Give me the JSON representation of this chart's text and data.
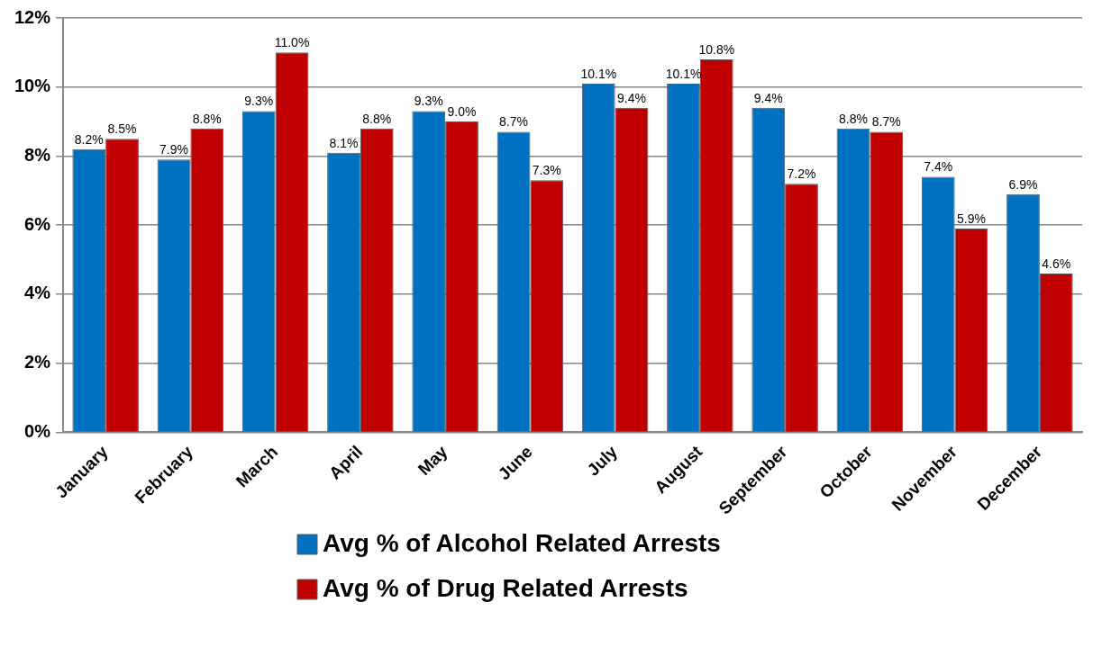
{
  "chart_data": {
    "type": "bar",
    "categories": [
      "January",
      "February",
      "March",
      "April",
      "May",
      "June",
      "July",
      "August",
      "September",
      "October",
      "November",
      "December"
    ],
    "series": [
      {
        "name": "Avg % of Alcohol Related Arrests",
        "color": "#0070c0",
        "values": [
          8.2,
          7.9,
          9.3,
          8.1,
          9.3,
          8.7,
          10.1,
          10.1,
          9.4,
          8.8,
          7.4,
          6.9
        ],
        "value_labels": [
          "8.2%",
          "7.9%",
          "9.3%",
          "8.1%",
          "9.3%",
          "8.7%",
          "10.1%",
          "10.1%",
          "9.4%",
          "8.8%",
          "7.4%",
          "6.9%"
        ]
      },
      {
        "name": "Avg % of Drug Related Arrests",
        "color": "#c00000",
        "values": [
          8.5,
          8.8,
          11.0,
          8.8,
          9.0,
          7.3,
          9.4,
          10.8,
          7.2,
          8.7,
          5.9,
          4.6
        ],
        "value_labels": [
          "8.5%",
          "8.8%",
          "11.0%",
          "8.8%",
          "9.0%",
          "7.3%",
          "9.4%",
          "10.8%",
          "7.2%",
          "8.7%",
          "5.9%",
          "4.6%"
        ]
      }
    ],
    "ylim": [
      0,
      12
    ],
    "yticks": [
      {
        "value": 0,
        "label": "0%"
      },
      {
        "value": 2,
        "label": "2%"
      },
      {
        "value": 4,
        "label": "4%"
      },
      {
        "value": 6,
        "label": "6%"
      },
      {
        "value": 8,
        "label": "8%"
      },
      {
        "value": 10,
        "label": "10%"
      },
      {
        "value": 12,
        "label": "12%"
      }
    ],
    "grid": "y",
    "legend": "bottom"
  }
}
